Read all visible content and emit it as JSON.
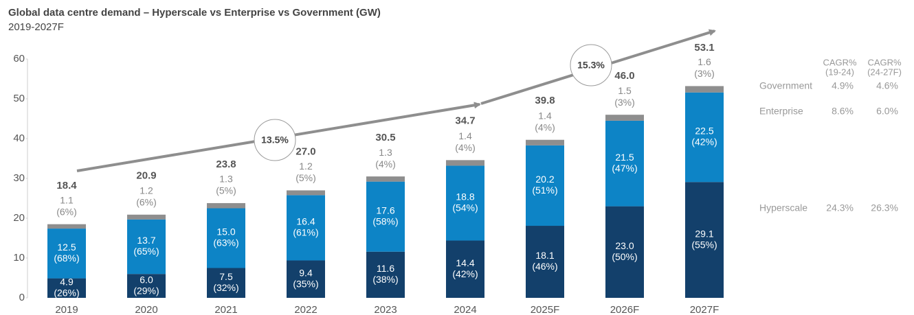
{
  "chart_data": {
    "type": "stacked_bar",
    "title": "Global data centre demand – Hyperscale vs Enterprise vs Government (GW)",
    "subtitle": "2019-2027F",
    "categories": [
      "2019",
      "2020",
      "2021",
      "2022",
      "2023",
      "2024",
      "2025F",
      "2026F",
      "2027F"
    ],
    "ylim": [
      0,
      60
    ],
    "yticks": [
      0,
      10,
      20,
      30,
      40,
      50,
      60
    ],
    "series": [
      {
        "name": "Hyperscale",
        "color": "#13406b",
        "values": [
          4.9,
          6,
          7.5,
          9.4,
          11.6,
          14.4,
          18.1,
          23,
          29.1
        ],
        "value_labels": [
          "4.9",
          "6.0",
          "7.5",
          "9.4",
          "11.6",
          "14.4",
          "18.1",
          "23.0",
          "29.1"
        ],
        "share_labels": [
          "(26%)",
          "(29%)",
          "(32%)",
          "(35%)",
          "(38%)",
          "(42%)",
          "(46%)",
          "(50%)",
          "(55%)"
        ],
        "cagr": [
          "24.3%",
          "26.3%"
        ]
      },
      {
        "name": "Enterprise",
        "color": "#0d84c6",
        "values": [
          12.5,
          13.7,
          15,
          16.4,
          17.6,
          18.8,
          20.2,
          21.5,
          22.5
        ],
        "value_labels": [
          "12.5",
          "13.7",
          "15.0",
          "16.4",
          "17.6",
          "18.8",
          "20.2",
          "21.5",
          "22.5"
        ],
        "share_labels": [
          "(68%)",
          "(65%)",
          "(63%)",
          "(61%)",
          "(58%)",
          "(54%)",
          "(51%)",
          "(47%)",
          "(42%)"
        ],
        "cagr": [
          "8.6%",
          "6.0%"
        ]
      },
      {
        "name": "Government",
        "color": "#8e8e8e",
        "values": [
          1.1,
          1.2,
          1.3,
          1.2,
          1.3,
          1.4,
          1.4,
          1.5,
          1.6
        ],
        "value_labels": [
          "1.1",
          "1.2",
          "1.3",
          "1.2",
          "1.3",
          "1.4",
          "1.4",
          "1.5",
          "1.6"
        ],
        "share_labels": [
          "(6%)",
          "(6%)",
          "(5%)",
          "(5%)",
          "(4%)",
          "(4%)",
          "(4%)",
          "(3%)",
          "(3%)"
        ],
        "cagr": [
          "4.9%",
          "4.6%"
        ]
      }
    ],
    "totals": {
      "values": [
        18.4,
        20.9,
        23.8,
        27,
        30.5,
        34.7,
        39.8,
        46,
        53.1
      ],
      "value_labels": [
        "18.4",
        "20.9",
        "23.8",
        "27.0",
        "30.5",
        "34.7",
        "39.8",
        "46.0",
        "53.1"
      ]
    },
    "cagr_headers": [
      [
        "CAGR%",
        "(19-24)"
      ],
      [
        "CAGR%",
        "(24-27F)"
      ]
    ],
    "annotations": [
      {
        "text": "13.5%"
      },
      {
        "text": "15.3%"
      }
    ]
  }
}
